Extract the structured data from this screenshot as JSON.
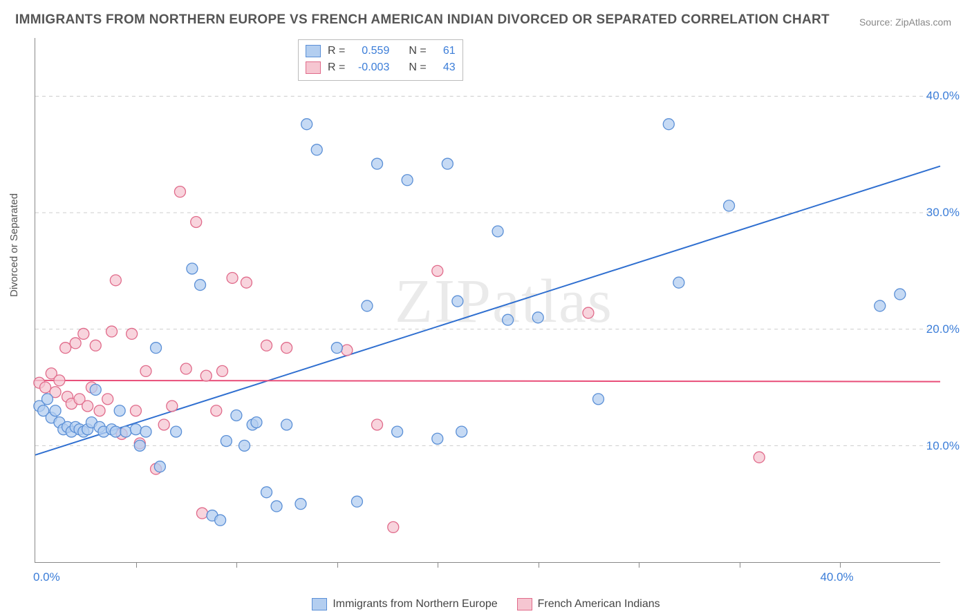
{
  "title": "IMMIGRANTS FROM NORTHERN EUROPE VS FRENCH AMERICAN INDIAN DIVORCED OR SEPARATED CORRELATION CHART",
  "source_label": "Source:",
  "source_name": "ZipAtlas.com",
  "ylabel": "Divorced or Separated",
  "watermark": "ZIPatlas",
  "chart": {
    "type": "scatter",
    "xlim": [
      0,
      45
    ],
    "ylim": [
      0,
      45
    ],
    "ytick_labels": [
      {
        "v": 10,
        "label": "10.0%"
      },
      {
        "v": 20,
        "label": "20.0%"
      },
      {
        "v": 30,
        "label": "30.0%"
      },
      {
        "v": 40,
        "label": "40.0%"
      }
    ],
    "xtick_labels": [
      {
        "v": 0,
        "label": "0.0%"
      },
      {
        "v": 40,
        "label": "40.0%"
      }
    ],
    "xtick_positions": [
      5,
      10,
      15,
      20,
      25,
      30,
      35,
      40
    ],
    "grid_color": "#cccccc",
    "background_color": "#ffffff",
    "marker_radius": 8,
    "marker_stroke_width": 1.3,
    "series": [
      {
        "id": "immigrants_ne",
        "label": "Immigrants from Northern Europe",
        "fill": "#b3cef0",
        "stroke": "#5a8fd6",
        "R": "0.559",
        "N": "61",
        "trend": {
          "x1": 0,
          "y1": 9.2,
          "x2": 45,
          "y2": 34.0,
          "color": "#2f6fd0",
          "width": 2
        },
        "points": [
          [
            0.2,
            13.4
          ],
          [
            0.4,
            13.0
          ],
          [
            0.6,
            14.0
          ],
          [
            0.8,
            12.4
          ],
          [
            1.0,
            13.0
          ],
          [
            1.2,
            12.0
          ],
          [
            1.4,
            11.4
          ],
          [
            1.6,
            11.6
          ],
          [
            1.8,
            11.2
          ],
          [
            2.0,
            11.6
          ],
          [
            2.2,
            11.4
          ],
          [
            2.4,
            11.2
          ],
          [
            2.6,
            11.4
          ],
          [
            2.8,
            12.0
          ],
          [
            3.0,
            14.8
          ],
          [
            3.2,
            11.6
          ],
          [
            3.4,
            11.2
          ],
          [
            3.8,
            11.4
          ],
          [
            4.0,
            11.2
          ],
          [
            4.2,
            13.0
          ],
          [
            4.5,
            11.2
          ],
          [
            5.0,
            11.4
          ],
          [
            5.2,
            10.0
          ],
          [
            5.5,
            11.2
          ],
          [
            6.0,
            18.4
          ],
          [
            6.2,
            8.2
          ],
          [
            7.0,
            11.2
          ],
          [
            7.8,
            25.2
          ],
          [
            8.2,
            23.8
          ],
          [
            8.8,
            4.0
          ],
          [
            9.2,
            3.6
          ],
          [
            9.5,
            10.4
          ],
          [
            10.0,
            12.6
          ],
          [
            10.4,
            10.0
          ],
          [
            10.8,
            11.8
          ],
          [
            11.0,
            12.0
          ],
          [
            11.5,
            6.0
          ],
          [
            12.0,
            4.8
          ],
          [
            12.5,
            11.8
          ],
          [
            13.2,
            5.0
          ],
          [
            13.5,
            37.6
          ],
          [
            14.0,
            35.4
          ],
          [
            15.0,
            18.4
          ],
          [
            16.0,
            5.2
          ],
          [
            16.5,
            22.0
          ],
          [
            17.0,
            34.2
          ],
          [
            18.0,
            11.2
          ],
          [
            18.5,
            32.8
          ],
          [
            20.0,
            10.6
          ],
          [
            20.5,
            34.2
          ],
          [
            21.0,
            22.4
          ],
          [
            21.2,
            11.2
          ],
          [
            23.0,
            28.4
          ],
          [
            23.5,
            20.8
          ],
          [
            25.0,
            21.0
          ],
          [
            28.0,
            14.0
          ],
          [
            31.5,
            37.6
          ],
          [
            32.0,
            24.0
          ],
          [
            34.5,
            30.6
          ],
          [
            42.0,
            22.0
          ],
          [
            43.0,
            23.0
          ]
        ]
      },
      {
        "id": "french_ai",
        "label": "French American Indians",
        "fill": "#f6c6d1",
        "stroke": "#e06a8a",
        "R": "-0.003",
        "N": "43",
        "trend": {
          "x1": 0,
          "y1": 15.6,
          "x2": 45,
          "y2": 15.5,
          "color": "#e84d78",
          "width": 2
        },
        "points": [
          [
            0.2,
            15.4
          ],
          [
            0.5,
            15.0
          ],
          [
            0.8,
            16.2
          ],
          [
            1.0,
            14.6
          ],
          [
            1.2,
            15.6
          ],
          [
            1.5,
            18.4
          ],
          [
            1.6,
            14.2
          ],
          [
            1.8,
            13.6
          ],
          [
            2.0,
            18.8
          ],
          [
            2.2,
            14.0
          ],
          [
            2.4,
            19.6
          ],
          [
            2.6,
            13.4
          ],
          [
            2.8,
            15.0
          ],
          [
            3.0,
            18.6
          ],
          [
            3.2,
            13.0
          ],
          [
            3.6,
            14.0
          ],
          [
            3.8,
            19.8
          ],
          [
            4.0,
            24.2
          ],
          [
            4.3,
            11.0
          ],
          [
            4.8,
            19.6
          ],
          [
            5.0,
            13.0
          ],
          [
            5.2,
            10.2
          ],
          [
            5.5,
            16.4
          ],
          [
            6.0,
            8.0
          ],
          [
            6.4,
            11.8
          ],
          [
            6.8,
            13.4
          ],
          [
            7.2,
            31.8
          ],
          [
            7.5,
            16.6
          ],
          [
            8.0,
            29.2
          ],
          [
            8.3,
            4.2
          ],
          [
            8.5,
            16.0
          ],
          [
            9.0,
            13.0
          ],
          [
            9.3,
            16.4
          ],
          [
            9.8,
            24.4
          ],
          [
            10.5,
            24.0
          ],
          [
            11.5,
            18.6
          ],
          [
            12.5,
            18.4
          ],
          [
            15.5,
            18.2
          ],
          [
            17.0,
            11.8
          ],
          [
            17.8,
            3.0
          ],
          [
            20.0,
            25.0
          ],
          [
            27.5,
            21.4
          ],
          [
            36.0,
            9.0
          ]
        ]
      }
    ]
  },
  "legend_top": {
    "R_label": "R =",
    "N_label": "N ="
  }
}
